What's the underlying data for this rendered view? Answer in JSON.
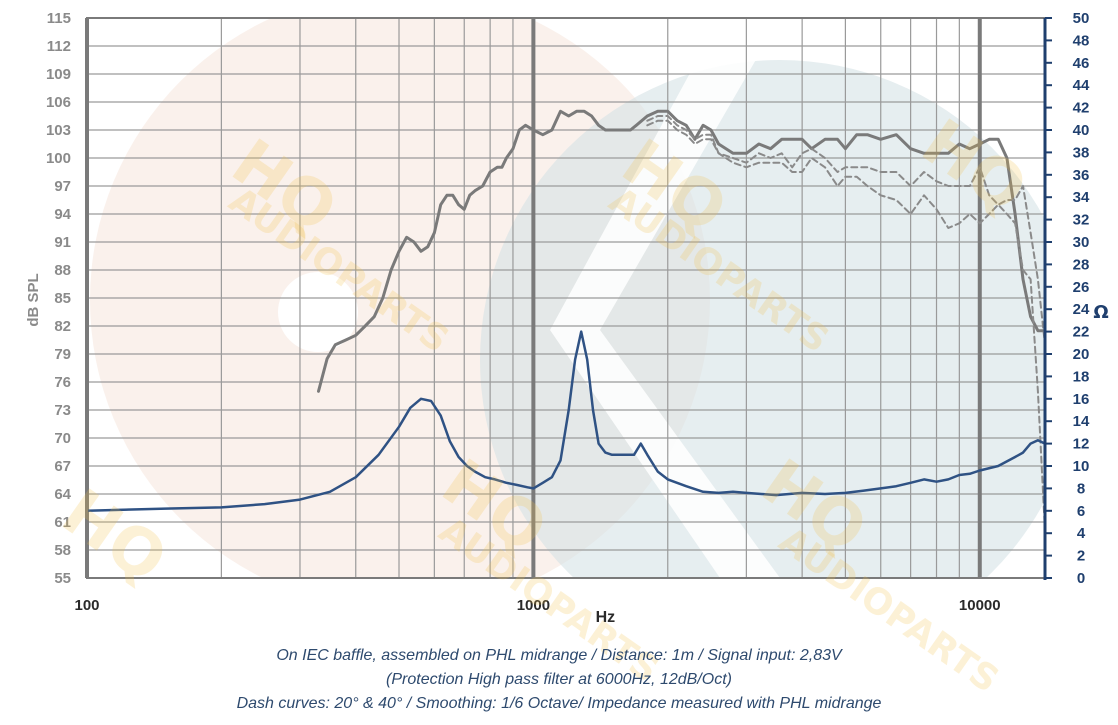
{
  "colors": {
    "spl_on_axis": "#7a7a7a",
    "spl_off_axis": "#8a8a8a",
    "impedance": "#2f5284",
    "grid": "#9a9a9a",
    "grid_major": "#7a7a7a",
    "left_axis_text": "#8a8a8a",
    "right_axis_text": "#1f3f6e",
    "caption": "#2e4a6e",
    "watermark": "#f2c14a",
    "bg_shape_pink": "#f6e6dc",
    "bg_shape_teal": "#d6e3e6"
  },
  "watermark": {
    "brand": "HQ",
    "sub": "AUDIOPARTS"
  },
  "notes": [
    "On IEC baffle, assembled on PHL midrange / Distance: 1m / Signal input: 2,83V",
    "(Protection High pass filter at 6000Hz, 12dB/Oct)",
    "Dash curves: 20° & 40° / Smoothing: 1/6 Octave/ Impedance measured with PHL midrange"
  ],
  "chart_data": {
    "type": "line",
    "xlabel": "Hz",
    "ylabel": "dB SPL",
    "y2label": "Ω",
    "xscale": "log",
    "xlim": [
      100,
      14000
    ],
    "ylim": [
      55,
      115
    ],
    "y2lim": [
      0,
      50
    ],
    "xticks": [
      "100",
      "1000",
      "10000"
    ],
    "yticks": [
      "115",
      "112",
      "109",
      "106",
      "103",
      "100",
      "97",
      "94",
      "91",
      "88",
      "85",
      "82",
      "79",
      "76",
      "73",
      "70",
      "67",
      "64",
      "61",
      "58",
      "55"
    ],
    "y2ticks": [
      "50",
      "48",
      "46",
      "44",
      "42",
      "40",
      "38",
      "36",
      "34",
      "32",
      "30",
      "28",
      "26",
      "24",
      "22",
      "20",
      "18",
      "16",
      "14",
      "12",
      "10",
      "8",
      "6",
      "4",
      "2",
      "0"
    ],
    "grid": true,
    "series": [
      {
        "style": "solid",
        "axis": "left",
        "x": [
          330,
          345,
          360,
          380,
          400,
          420,
          440,
          460,
          480,
          500,
          520,
          540,
          560,
          580,
          600,
          620,
          640,
          660,
          680,
          700,
          720,
          740,
          770,
          800,
          830,
          850,
          870,
          900,
          930,
          960,
          1000,
          1050,
          1100,
          1150,
          1200,
          1250,
          1300,
          1350,
          1400,
          1450,
          1500,
          1550,
          1600,
          1650,
          1700,
          1800,
          1900,
          2000,
          2100,
          2200,
          2300,
          2400,
          2500,
          2600,
          2800,
          3000,
          3200,
          3400,
          3600,
          3800,
          4000,
          4200,
          4500,
          4800,
          5000,
          5300,
          5600,
          6000,
          6500,
          7000,
          7500,
          8000,
          8500,
          9000,
          9500,
          10000,
          10500,
          11000,
          11500,
          12000,
          12500,
          13000,
          13500,
          14000,
          14300
        ],
        "y": [
          75,
          78.5,
          80,
          80.5,
          81,
          82,
          83,
          85,
          88,
          90,
          91.5,
          91,
          90,
          90.5,
          92,
          95,
          96,
          96,
          95,
          94.5,
          96,
          96.5,
          97,
          98.5,
          99,
          99,
          100,
          101,
          103,
          103.5,
          103,
          102.5,
          103,
          105,
          104.5,
          105,
          105,
          104.5,
          103.5,
          103,
          103,
          103,
          103,
          103,
          103.5,
          104.5,
          105,
          105,
          104,
          103.5,
          102,
          103.5,
          103,
          101.5,
          100.5,
          100.5,
          101.5,
          101,
          102,
          102,
          102,
          101,
          102,
          102,
          101,
          102.5,
          102.5,
          102,
          102.5,
          101,
          100.5,
          100.5,
          100.5,
          101.5,
          101,
          101.5,
          102,
          102,
          100,
          94,
          87,
          83,
          81.5,
          81.5,
          81.5
        ]
      },
      {
        "style": "dashed",
        "axis": "left",
        "x": [
          1800,
          1900,
          2000,
          2100,
          2200,
          2300,
          2400,
          2500,
          2600,
          2800,
          3000,
          3200,
          3400,
          3600,
          3800,
          4000,
          4200,
          4500,
          4800,
          5000,
          5300,
          5600,
          6000,
          6500,
          7000,
          7500,
          8000,
          8500,
          9000,
          9500,
          10000,
          10500,
          11000,
          11500,
          12000,
          12500,
          13000,
          13500,
          14000
        ],
        "y": [
          104,
          104.5,
          104.5,
          103.5,
          103,
          102,
          102.5,
          102.5,
          100.5,
          100,
          99.5,
          100.5,
          100,
          100.5,
          99,
          100.5,
          101,
          100,
          98.5,
          99,
          99,
          99,
          98.5,
          98.5,
          97,
          98.5,
          97.5,
          97,
          97,
          97,
          99,
          96,
          95,
          95.5,
          95.5,
          97,
          92,
          87,
          80
        ]
      },
      {
        "style": "dashed",
        "axis": "left",
        "x": [
          1800,
          1900,
          2000,
          2100,
          2200,
          2300,
          2400,
          2500,
          2600,
          2800,
          3000,
          3200,
          3400,
          3600,
          3800,
          4000,
          4200,
          4500,
          4800,
          5000,
          5300,
          5600,
          6000,
          6500,
          7000,
          7500,
          8000,
          8500,
          9000,
          9500,
          10000,
          10500,
          11000,
          11500,
          12000,
          12500,
          13000,
          13500,
          14000
        ],
        "y": [
          103.5,
          104,
          104,
          103,
          102.5,
          101.5,
          102,
          102,
          100.5,
          99.5,
          99,
          99.5,
          99.5,
          99.5,
          98.5,
          98.5,
          100,
          99,
          97,
          98,
          98,
          97,
          96,
          95.5,
          94,
          96,
          94.5,
          92.5,
          93,
          94,
          93,
          94,
          95,
          94,
          93,
          88,
          87,
          75,
          60
        ]
      },
      {
        "style": "solid",
        "axis": "right",
        "x": [
          100,
          150,
          200,
          250,
          300,
          350,
          400,
          450,
          500,
          530,
          560,
          590,
          620,
          650,
          680,
          710,
          740,
          780,
          820,
          870,
          920,
          970,
          1000,
          1050,
          1100,
          1150,
          1200,
          1240,
          1280,
          1320,
          1360,
          1400,
          1450,
          1500,
          1560,
          1620,
          1680,
          1740,
          1800,
          1900,
          2000,
          2200,
          2400,
          2600,
          2800,
          3000,
          3500,
          4000,
          4500,
          5000,
          5500,
          6000,
          6500,
          7000,
          7500,
          8000,
          8500,
          9000,
          9500,
          10000,
          11000,
          12000,
          12500,
          13000,
          13500,
          14000,
          14300
        ],
        "y": [
          6,
          6.2,
          6.3,
          6.6,
          7,
          7.7,
          9,
          11,
          13.5,
          15.2,
          16,
          15.8,
          14.5,
          12.2,
          10.8,
          10,
          9.5,
          9,
          8.8,
          8.5,
          8.3,
          8.1,
          8,
          8.5,
          9,
          10.5,
          15,
          19.5,
          22,
          19.5,
          15,
          12,
          11.2,
          11,
          11,
          11,
          11,
          12,
          11,
          9.5,
          8.8,
          8.2,
          7.7,
          7.6,
          7.7,
          7.6,
          7.4,
          7.6,
          7.5,
          7.6,
          7.8,
          8,
          8.2,
          8.5,
          8.8,
          8.6,
          8.8,
          9.2,
          9.3,
          9.6,
          10,
          10.8,
          11.2,
          12,
          12.3,
          12,
          11.8
        ]
      }
    ]
  }
}
